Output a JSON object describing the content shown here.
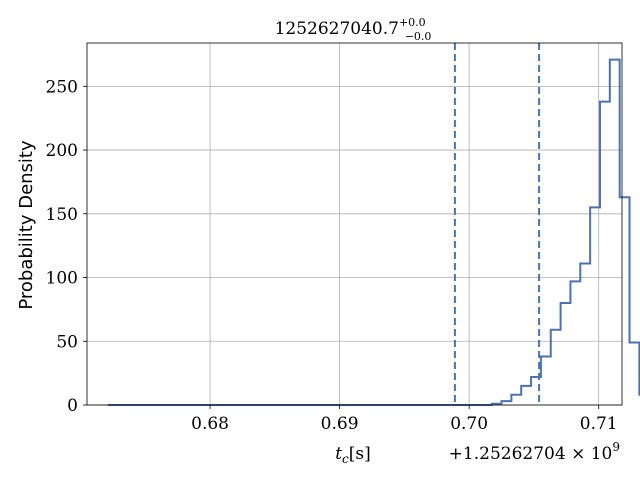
{
  "chart_data": {
    "type": "histogram",
    "title": {
      "base": "1252627040.7",
      "sup": "+0.0",
      "sub": "−0.0"
    },
    "xlabel": {
      "var": "t",
      "sub": "c",
      "unit": "[s]"
    },
    "ylabel": "Probability Density",
    "offset_text": {
      "prefix": "+1.25262704 × 10",
      "exp": "9"
    },
    "xlim": [
      0.6705,
      0.7118
    ],
    "ylim": [
      0,
      284
    ],
    "xticks": [
      {
        "value": 0.68,
        "label": "0.68"
      },
      {
        "value": 0.69,
        "label": "0.69"
      },
      {
        "value": 0.7,
        "label": "0.70"
      },
      {
        "value": 0.71,
        "label": "0.71"
      }
    ],
    "yticks": [
      {
        "value": 0,
        "label": "0"
      },
      {
        "value": 50,
        "label": "50"
      },
      {
        "value": 100,
        "label": "100"
      },
      {
        "value": 150,
        "label": "150"
      },
      {
        "value": 200,
        "label": "200"
      },
      {
        "value": 250,
        "label": "250"
      }
    ],
    "grid": true,
    "series": [
      {
        "color": "#4c72b0",
        "bins_start": 0.6721,
        "bin_width": 0.00076,
        "density": [
          0,
          0,
          0,
          0,
          0,
          0,
          0,
          0,
          0,
          0,
          0,
          0,
          0,
          0,
          0,
          0,
          0,
          0,
          0,
          0,
          0,
          0,
          0,
          0,
          0,
          0,
          0,
          0,
          0,
          0,
          0,
          0,
          0,
          0,
          0,
          0,
          0,
          0,
          0,
          1,
          3,
          8,
          15,
          22,
          38,
          59,
          80,
          97,
          111,
          155,
          238,
          271,
          163,
          49,
          8,
          1,
          0,
          0,
          0,
          0
        ]
      }
    ],
    "quantile_lines": {
      "style": "dashed",
      "color": "#4c72b0",
      "values": [
        0.6989,
        0.7054
      ]
    }
  }
}
